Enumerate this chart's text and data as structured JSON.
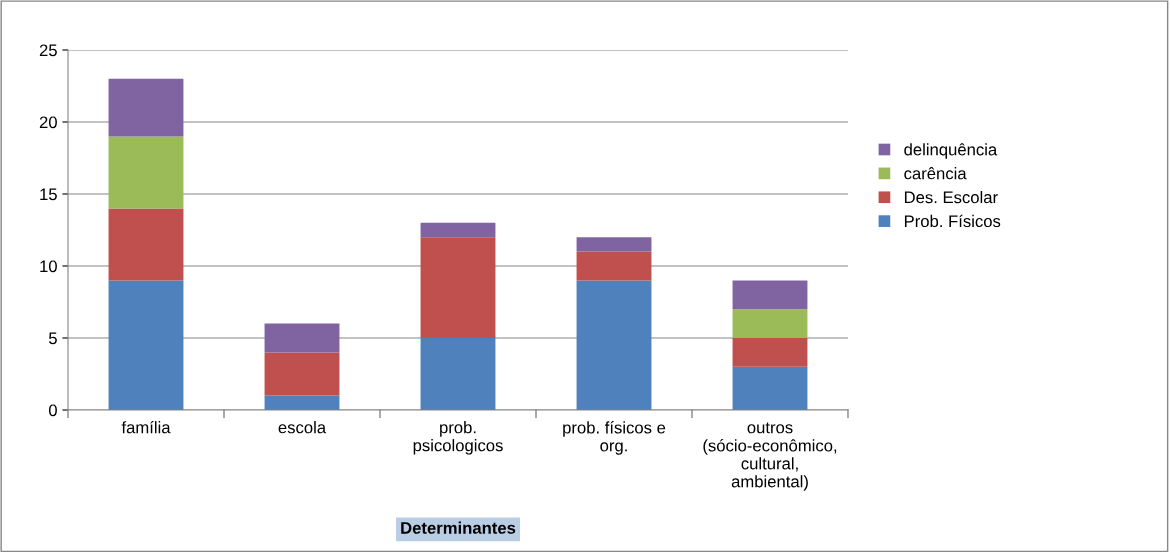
{
  "chart_data": {
    "type": "bar",
    "stacked": true,
    "xlabel": "Determinantes",
    "categories": [
      "família",
      "escola",
      "prob. psicologicos",
      "prob. físicos e org.",
      "outros (sócio-econômico, cultural, ambiental)"
    ],
    "series": [
      {
        "name": "Prob. Físicos",
        "color": "#4f81bd",
        "values": [
          9,
          1,
          5,
          9,
          3
        ]
      },
      {
        "name": "Des. Escolar",
        "color": "#c0504d",
        "values": [
          5,
          3,
          7,
          2,
          2
        ]
      },
      {
        "name": "carência",
        "color": "#9bbb59",
        "values": [
          5,
          0,
          0,
          0,
          2
        ]
      },
      {
        "name": "delinquência",
        "color": "#8064a2",
        "values": [
          4,
          2,
          1,
          1,
          2
        ]
      }
    ],
    "ylim": [
      0,
      25
    ],
    "yticks": [
      0,
      5,
      10,
      15,
      20,
      25
    ],
    "grid": "y",
    "legend": "right"
  }
}
